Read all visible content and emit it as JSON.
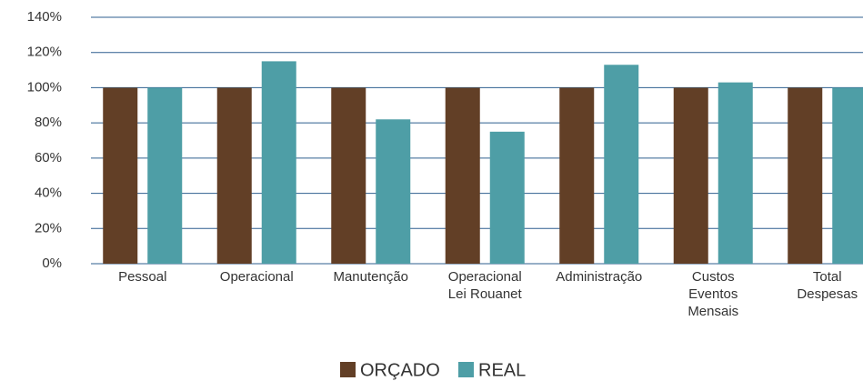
{
  "chart_data": {
    "type": "bar",
    "categories": [
      "Pessoal",
      "Operacional",
      "Manutenção",
      "Operacional\nLei Rouanet",
      "Administração",
      "Custos\nEventos\nMensais",
      "Total\nDespesas"
    ],
    "series": [
      {
        "name": "ORÇADO",
        "color": "#623f26",
        "values": [
          100,
          100,
          100,
          100,
          100,
          100,
          100
        ]
      },
      {
        "name": "REAL",
        "color": "#4e9ea6",
        "values": [
          100,
          115,
          82,
          75,
          113,
          103,
          100
        ]
      }
    ],
    "ylim": [
      0,
      140
    ],
    "yticks": [
      {
        "value": 0,
        "label": "0%"
      },
      {
        "value": 20,
        "label": "20%"
      },
      {
        "value": 40,
        "label": "40%"
      },
      {
        "value": 60,
        "label": "60%"
      },
      {
        "value": 80,
        "label": "80%"
      },
      {
        "value": 100,
        "label": "100%"
      },
      {
        "value": 120,
        "label": "120%"
      },
      {
        "value": 140,
        "label": "140%"
      }
    ],
    "grid": true,
    "legend": "bottom"
  }
}
